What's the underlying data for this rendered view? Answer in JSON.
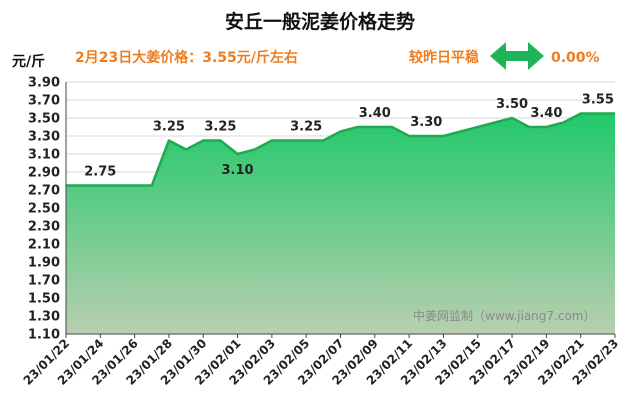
{
  "header": {
    "title": "安丘一般泥姜价格走势",
    "price_line": "2月23日大姜价格：3.55元/斤左右",
    "compare_text": "较昨日平稳",
    "change_value": "0.00%",
    "change_icon": "double-arrow-icon"
  },
  "watermark": "中姜网监制（www.jiang7.com）",
  "colors": {
    "line": "#1faa50",
    "fill_top": "#22c86a",
    "fill_bottom": "#b9cfb0",
    "accent": "#ee7d21",
    "arrow": "#1fb45a"
  },
  "chart_data": {
    "type": "area",
    "title": "安丘一般泥姜价格走势",
    "ylabel": "元/斤",
    "ylim": [
      1.1,
      3.9
    ],
    "y_ticks": [
      "1.10",
      "1.30",
      "1.50",
      "1.70",
      "1.90",
      "2.10",
      "2.30",
      "2.50",
      "2.70",
      "2.90",
      "3.10",
      "3.30",
      "3.50",
      "3.70",
      "3.90"
    ],
    "x_tick_labels": [
      "23/01/22",
      "23/01/24",
      "23/01/26",
      "23/01/28",
      "23/01/30",
      "23/02/01",
      "23/02/03",
      "23/02/05",
      "23/02/07",
      "23/02/09",
      "23/02/11",
      "23/02/13",
      "23/02/15",
      "23/02/17",
      "23/02/19",
      "23/02/21",
      "23/02/23"
    ],
    "x": [
      "23/01/22",
      "23/01/23",
      "23/01/24",
      "23/01/25",
      "23/01/26",
      "23/01/27",
      "23/01/28",
      "23/01/29",
      "23/01/30",
      "23/01/31",
      "23/02/01",
      "23/02/02",
      "23/02/03",
      "23/02/04",
      "23/02/05",
      "23/02/06",
      "23/02/07",
      "23/02/08",
      "23/02/09",
      "23/02/10",
      "23/02/11",
      "23/02/12",
      "23/02/13",
      "23/02/14",
      "23/02/15",
      "23/02/16",
      "23/02/17",
      "23/02/18",
      "23/02/19",
      "23/02/20",
      "23/02/21",
      "23/02/22",
      "23/02/23"
    ],
    "values": [
      2.75,
      2.75,
      2.75,
      2.75,
      2.75,
      2.75,
      3.25,
      3.15,
      3.25,
      3.25,
      3.1,
      3.15,
      3.25,
      3.25,
      3.25,
      3.25,
      3.35,
      3.4,
      3.4,
      3.4,
      3.3,
      3.3,
      3.3,
      3.35,
      3.4,
      3.45,
      3.5,
      3.4,
      3.4,
      3.45,
      3.55,
      3.55,
      3.55
    ],
    "data_labels": [
      {
        "date": "23/01/24",
        "text": "2.75"
      },
      {
        "date": "23/01/28",
        "text": "3.25"
      },
      {
        "date": "23/01/31",
        "text": "3.25"
      },
      {
        "date": "23/02/01",
        "text": "3.10"
      },
      {
        "date": "23/02/05",
        "text": "3.25"
      },
      {
        "date": "23/02/09",
        "text": "3.40"
      },
      {
        "date": "23/02/12",
        "text": "3.30"
      },
      {
        "date": "23/02/17",
        "text": "3.50"
      },
      {
        "date": "23/02/19",
        "text": "3.40"
      },
      {
        "date": "23/02/22",
        "text": "3.55"
      }
    ]
  }
}
